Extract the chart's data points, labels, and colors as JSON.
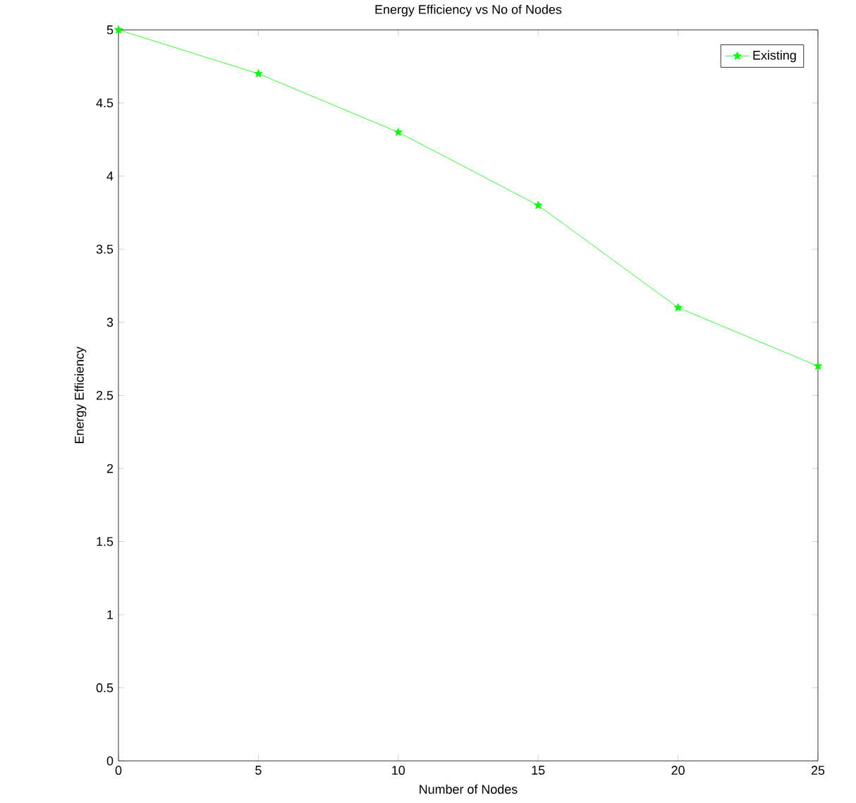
{
  "chart_data": {
    "type": "line",
    "title": "Energy Efficiency vs No of Nodes",
    "xlabel": "Number of Nodes",
    "ylabel": "Energy Efficiency",
    "x": [
      0,
      5,
      10,
      15,
      20,
      25
    ],
    "series": [
      {
        "name": "Existing",
        "color": "#00ff00",
        "values": [
          5,
          4.7,
          4.3,
          3.8,
          3.1,
          2.7
        ]
      }
    ],
    "xlim": [
      0,
      25
    ],
    "xticks": [
      0,
      5,
      10,
      15,
      20,
      25
    ],
    "ylim": [
      0,
      5
    ],
    "yticks": [
      0,
      0.5,
      1,
      1.5,
      2,
      2.5,
      3,
      3.5,
      4,
      4.5,
      5
    ],
    "marker": "star",
    "legend": "top right",
    "grid": false
  }
}
